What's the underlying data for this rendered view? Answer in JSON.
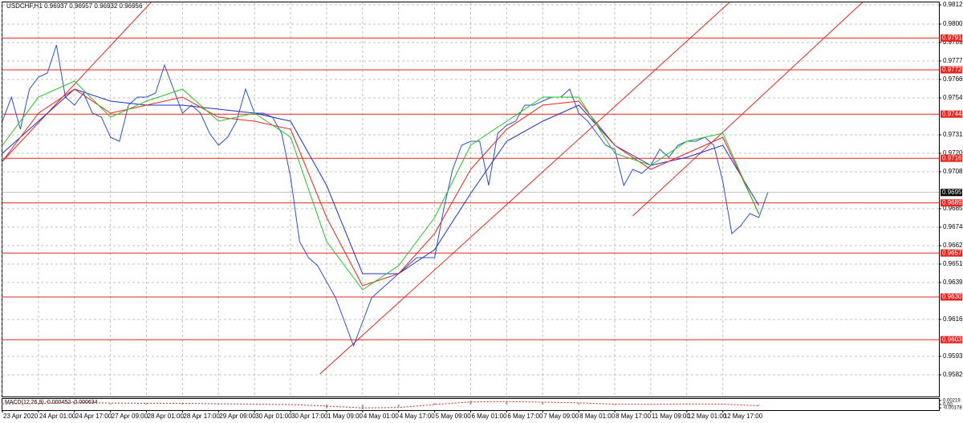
{
  "chart_data": [
    {
      "type": "line",
      "title": "USDCHF,H1 0.96937 0.96957 0.96932 0.96956",
      "xlim": [
        0,
        416
      ],
      "ylim": [
        0.95685,
        0.9814
      ],
      "grid": true,
      "xticks": [
        {
          "value": 0,
          "label": "23 Apr 2020"
        },
        {
          "value": 16,
          "label": "24 Apr 01:00"
        },
        {
          "value": 32,
          "label": "24 Apr 17:00"
        },
        {
          "value": 48,
          "label": "27 Apr 09:00"
        },
        {
          "value": 64,
          "label": "28 Apr 01:00"
        },
        {
          "value": 80,
          "label": "28 Apr 17:00"
        },
        {
          "value": 96,
          "label": "29 Apr 09:00"
        },
        {
          "value": 112,
          "label": "30 Apr 01:00"
        },
        {
          "value": 128,
          "label": "30 Apr 17:00"
        },
        {
          "value": 144,
          "label": "1 May 09:00"
        },
        {
          "value": 160,
          "label": "4 May 01:00"
        },
        {
          "value": 176,
          "label": "4 May 17:00"
        },
        {
          "value": 192,
          "label": "5 May 09:00"
        },
        {
          "value": 208,
          "label": "6 May 01:00"
        },
        {
          "value": 224,
          "label": "6 May 17:00"
        },
        {
          "value": 240,
          "label": "7 May 09:00"
        },
        {
          "value": 256,
          "label": "8 May 01:00"
        },
        {
          "value": 272,
          "label": "8 May 17:00"
        },
        {
          "value": 288,
          "label": "11 May 09:00"
        },
        {
          "value": 304,
          "label": "12 May 01:00"
        },
        {
          "value": 320,
          "label": "12 May 17:00"
        }
      ],
      "yticks": [
        {
          "value": 0.98125,
          "label": "0.98125"
        },
        {
          "value": 0.98005,
          "label": "0.98005"
        },
        {
          "value": 0.9789,
          "label": "0.97890"
        },
        {
          "value": 0.97775,
          "label": "0.97775"
        },
        {
          "value": 0.9766,
          "label": "0.97660"
        },
        {
          "value": 0.97545,
          "label": "0.97545"
        },
        {
          "value": 0.97315,
          "label": "0.97315"
        },
        {
          "value": 0.972,
          "label": "0.97200"
        },
        {
          "value": 0.97085,
          "label": "0.97085"
        },
        {
          "value": 0.96855,
          "label": "0.96855"
        },
        {
          "value": 0.9674,
          "label": "0.96740"
        },
        {
          "value": 0.96625,
          "label": "0.96625"
        },
        {
          "value": 0.9651,
          "label": "0.96510"
        },
        {
          "value": 0.96395,
          "label": "0.96395"
        },
        {
          "value": 0.96165,
          "label": "0.96165"
        },
        {
          "value": 0.95935,
          "label": "0.95935"
        },
        {
          "value": 0.9582,
          "label": "0.95820"
        }
      ],
      "levels": [
        {
          "value": 0.97918,
          "label": "0.97918"
        },
        {
          "value": 0.9772,
          "label": "0.97720"
        },
        {
          "value": 0.97444,
          "label": "0.97444"
        },
        {
          "value": 0.97169,
          "label": "0.97169"
        },
        {
          "value": 0.96891,
          "label": "0.96891"
        },
        {
          "value": 0.96579,
          "label": "0.96579"
        },
        {
          "value": 0.96305,
          "label": "0.96305"
        },
        {
          "value": 0.96039,
          "label": "0.96039"
        }
      ],
      "level_color": "#e8231c",
      "current_price": {
        "value": 0.96956,
        "label": "0.96956"
      },
      "trendlines": [
        {
          "x": [
            0,
            66
          ],
          "y": [
            0.9715,
            0.9814
          ]
        },
        {
          "x": [
            141,
            323
          ],
          "y": [
            0.95825,
            0.9814
          ]
        },
        {
          "x": [
            280,
            382
          ],
          "y": [
            0.9681,
            0.9814
          ]
        }
      ],
      "series": [
        {
          "color": "#2a50d6",
          "x": [
            0,
            4,
            8,
            12,
            16,
            20,
            24,
            28,
            32,
            36,
            40,
            44,
            48,
            52,
            56,
            60,
            64,
            68,
            72,
            76,
            80,
            84,
            88,
            92,
            96,
            100,
            104,
            108,
            112,
            116,
            120,
            124,
            128,
            132,
            136,
            140,
            144,
            148,
            152,
            156,
            160,
            164,
            168,
            172,
            176,
            180,
            184,
            188,
            192,
            196,
            200,
            204,
            208,
            212,
            216,
            220,
            224,
            228,
            232,
            236,
            240,
            244,
            248,
            252,
            256,
            260,
            264,
            268,
            272,
            276,
            280,
            284,
            288,
            292,
            296,
            300,
            304,
            308,
            312,
            316,
            320,
            324,
            328,
            332,
            336,
            340
          ],
          "values": [
            0.974,
            0.9755,
            0.9735,
            0.976,
            0.97675,
            0.977,
            0.97875,
            0.9755,
            0.975,
            0.97575,
            0.9745,
            0.97425,
            0.973,
            0.97275,
            0.975,
            0.9755,
            0.9755,
            0.97575,
            0.9775,
            0.976,
            0.9745,
            0.975,
            0.9745,
            0.97325,
            0.9725,
            0.973,
            0.974,
            0.976,
            0.9745,
            0.9745,
            0.97425,
            0.97325,
            0.9705,
            0.9665,
            0.9655,
            0.965,
            0.964,
            0.963,
            0.9615,
            0.96,
            0.9615,
            0.963,
            0.9635,
            0.964,
            0.9645,
            0.965,
            0.9655,
            0.9655,
            0.9655,
            0.9685,
            0.971,
            0.9725,
            0.97275,
            0.97275,
            0.97,
            0.97325,
            0.97375,
            0.974,
            0.975,
            0.975,
            0.97525,
            0.9755,
            0.9755,
            0.976,
            0.9745,
            0.974,
            0.97325,
            0.9725,
            0.97225,
            0.97,
            0.971,
            0.97075,
            0.97125,
            0.97225,
            0.97175,
            0.9725,
            0.97275,
            0.97275,
            0.973,
            0.9725,
            0.97025,
            0.967,
            0.9675,
            0.96825,
            0.968,
            0.96956
          ]
        },
        {
          "color": "#1c2fd0",
          "x": [
            0,
            16,
            32,
            48,
            64,
            80,
            96,
            112,
            128,
            144,
            160,
            176,
            192,
            208,
            224,
            240,
            256,
            272,
            288,
            304,
            320,
            336
          ],
          "values": [
            0.972,
            0.974,
            0.976,
            0.97525,
            0.975,
            0.975,
            0.97475,
            0.9745,
            0.974,
            0.97,
            0.9645,
            0.9645,
            0.966,
            0.9695,
            0.97275,
            0.974,
            0.975,
            0.9725,
            0.97125,
            0.97175,
            0.9725,
            0.96875
          ]
        },
        {
          "color": "#e8231c",
          "x": [
            0,
            16,
            32,
            48,
            64,
            80,
            96,
            112,
            128,
            144,
            160,
            176,
            192,
            208,
            224,
            240,
            256,
            272,
            288,
            304,
            320,
            336
          ],
          "values": [
            0.9715,
            0.9745,
            0.976,
            0.9745,
            0.975,
            0.9755,
            0.97425,
            0.974,
            0.9735,
            0.968,
            0.96375,
            0.9645,
            0.967,
            0.971,
            0.9735,
            0.975,
            0.97525,
            0.9725,
            0.971,
            0.972,
            0.973,
            0.96825
          ]
        },
        {
          "color": "#22c422",
          "x": [
            0,
            16,
            32,
            48,
            64,
            80,
            96,
            112,
            128,
            144,
            160,
            176,
            192,
            208,
            224,
            240,
            256,
            272,
            288,
            304,
            320,
            336
          ],
          "values": [
            0.9725,
            0.9755,
            0.9765,
            0.97425,
            0.97525,
            0.976,
            0.974,
            0.9745,
            0.973,
            0.9665,
            0.9635,
            0.965,
            0.968,
            0.9725,
            0.974,
            0.9755,
            0.9755,
            0.972,
            0.97125,
            0.97275,
            0.97325,
            0.9682
          ]
        }
      ]
    },
    {
      "type": "macd",
      "title": "MACD(12,26,9) -0.000452 -0.000634",
      "ylim": [
        -0.003,
        0.003
      ],
      "yticks": [
        0.00219,
        {
          "value": 0,
          "label": "0.00"
        },
        -0.00178
      ],
      "x": [
        0,
        16,
        32,
        48,
        64,
        80,
        96,
        112,
        128,
        144,
        160,
        176,
        192,
        208,
        224,
        240,
        256,
        272,
        288,
        304,
        320,
        336
      ],
      "series": [
        {
          "color": "#a0a0a0",
          "values": [
            0.0004,
            0.0009,
            0.0012,
            0.0006,
            0.0008,
            0.0007,
            0.0002,
            0.0001,
            -0.0001,
            -0.002,
            -0.0026,
            -0.0012,
            0.0008,
            0.002,
            0.0016,
            0.0012,
            0.0008,
            -0.0003,
            0.0002,
            0.0004,
            0.0001,
            -0.000452
          ]
        },
        {
          "color": "#e8231c",
          "values": [
            0.0003,
            0.0006,
            0.001,
            0.0008,
            0.0007,
            0.0007,
            0.0004,
            0.0002,
            0,
            -0.0008,
            -0.0018,
            -0.0016,
            0,
            0.0014,
            0.0016,
            0.0013,
            0.0009,
            0.0002,
            0.0001,
            0.0003,
            0.0002,
            -0.000634
          ]
        }
      ]
    }
  ]
}
